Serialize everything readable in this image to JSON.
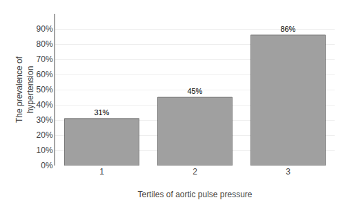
{
  "chart_data": {
    "type": "bar",
    "xlabel": "Tertiles of aortic pulse pressure",
    "ylabel": "The prevalence of\nhypertension",
    "categories": [
      "1",
      "2",
      "3"
    ],
    "values": [
      0.31,
      0.45,
      0.86
    ],
    "value_labels": [
      "31%",
      "45%",
      "86%"
    ],
    "data_labels": true,
    "color": "#a0a0a0",
    "ylim": [
      0,
      1.0
    ],
    "yticks": [
      {
        "value": 0.0,
        "label": "0%"
      },
      {
        "value": 0.1,
        "label": "10%"
      },
      {
        "value": 0.2,
        "label": "20%"
      },
      {
        "value": 0.3,
        "label": "30%"
      },
      {
        "value": 0.4,
        "label": "40%"
      },
      {
        "value": 0.5,
        "label": "50%"
      },
      {
        "value": 0.6,
        "label": "60%"
      },
      {
        "value": 0.7,
        "label": "70%"
      },
      {
        "value": 0.8,
        "label": "80%"
      },
      {
        "value": 0.9,
        "label": "90%"
      }
    ],
    "grid": true
  }
}
